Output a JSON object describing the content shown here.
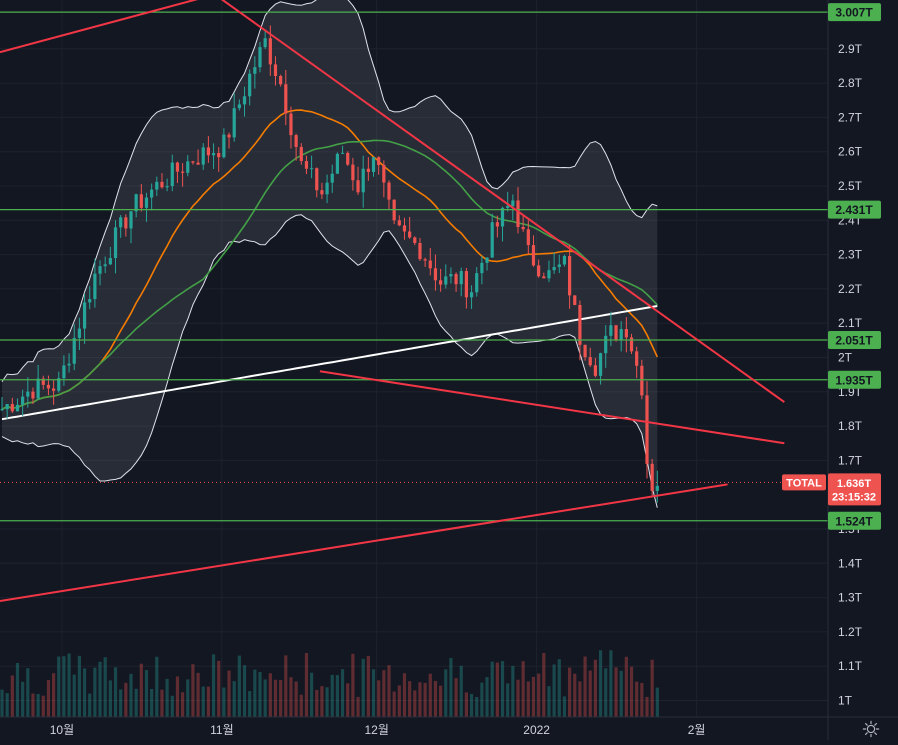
{
  "colors": {
    "background": "#131722",
    "grid": "#1e222d",
    "up": "#26a69a",
    "down": "#ef5350",
    "level_line": "#4caf50",
    "level_tag": "#4caf50",
    "trend_line": "#f23645",
    "bb_line": "#e0e3eb",
    "bb_fill": "rgba(120,123,134,0.22)",
    "ma_orange": "#f57c00",
    "ma_green": "#43a047",
    "ma_white": "#ffffff",
    "axis_text": "#d1d4dc"
  },
  "chart_data": {
    "type": "candlestick",
    "symbol": "TOTAL",
    "y_axis": {
      "scale": "linear",
      "unit": "T",
      "range": [
        0.93,
        3.05
      ],
      "ticks": [
        {
          "value": 2.9,
          "label": "2.9T"
        },
        {
          "value": 2.8,
          "label": "2.8T"
        },
        {
          "value": 2.7,
          "label": "2.7T"
        },
        {
          "value": 2.6,
          "label": "2.6T"
        },
        {
          "value": 2.5,
          "label": "2.5T"
        },
        {
          "value": 2.4,
          "label": "2.4T"
        },
        {
          "value": 2.3,
          "label": "2.3T"
        },
        {
          "value": 2.2,
          "label": "2.2T"
        },
        {
          "value": 2.1,
          "label": "2.1T"
        },
        {
          "value": 2.0,
          "label": "2T"
        },
        {
          "value": 1.9,
          "label": "1.9T"
        },
        {
          "value": 1.8,
          "label": "1.8T"
        },
        {
          "value": 1.7,
          "label": "1.7T"
        },
        {
          "value": 1.5,
          "label": "1.5T"
        },
        {
          "value": 1.4,
          "label": "1.4T"
        },
        {
          "value": 1.3,
          "label": "1.3T"
        },
        {
          "value": 1.2,
          "label": "1.2T"
        },
        {
          "value": 1.1,
          "label": "1.1T"
        },
        {
          "value": 1.0,
          "label": "1T"
        }
      ]
    },
    "x_axis": {
      "range": [
        "2021-09-19",
        "2022-02-18"
      ],
      "ticks": [
        {
          "date": "2021-10-01",
          "label": "10월"
        },
        {
          "date": "2021-11-01",
          "label": "11월"
        },
        {
          "date": "2021-12-01",
          "label": "12월"
        },
        {
          "date": "2022-01-01",
          "label": "2022"
        },
        {
          "date": "2022-02-01",
          "label": "2월"
        }
      ]
    },
    "horizontal_levels": [
      {
        "value": 3.007,
        "label": "3.007T"
      },
      {
        "value": 2.431,
        "label": "2.431T"
      },
      {
        "value": 2.051,
        "label": "2.051T"
      },
      {
        "value": 1.935,
        "label": "1.935T"
      },
      {
        "value": 1.524,
        "label": "1.524T"
      }
    ],
    "last_price": {
      "value": 1.636,
      "label": "1.636T",
      "countdown": "23:15:32",
      "symbol_label": "TOTAL"
    },
    "trend_lines": [
      {
        "from": {
          "date": "2021-09-19",
          "value": 2.89
        },
        "to": {
          "date": "2021-12-17",
          "value": 3.25
        }
      },
      {
        "from": {
          "date": "2021-10-24",
          "value": 3.13
        },
        "to": {
          "date": "2022-02-18",
          "value": 1.87
        }
      },
      {
        "from": {
          "date": "2021-11-20",
          "value": 1.96
        },
        "to": {
          "date": "2022-02-18",
          "value": 1.75
        }
      },
      {
        "from": {
          "date": "2021-09-19",
          "value": 1.29
        },
        "to": {
          "date": "2022-02-07",
          "value": 1.63
        }
      }
    ],
    "ohlc_anchors": [
      {
        "date": "2021-09-19",
        "value": 1.85
      },
      {
        "date": "2021-09-25",
        "value": 1.91
      },
      {
        "date": "2021-09-30",
        "value": 1.92
      },
      {
        "date": "2021-10-07",
        "value": 2.24
      },
      {
        "date": "2021-10-14",
        "value": 2.43
      },
      {
        "date": "2021-10-19",
        "value": 2.5
      },
      {
        "date": "2021-10-26",
        "value": 2.58
      },
      {
        "date": "2021-11-01",
        "value": 2.62
      },
      {
        "date": "2021-11-06",
        "value": 2.82
      },
      {
        "date": "2021-11-09",
        "value": 2.92
      },
      {
        "date": "2021-11-12",
        "value": 2.8
      },
      {
        "date": "2021-11-16",
        "value": 2.56
      },
      {
        "date": "2021-11-20",
        "value": 2.48
      },
      {
        "date": "2021-11-24",
        "value": 2.6
      },
      {
        "date": "2021-11-27",
        "value": 2.5
      },
      {
        "date": "2021-11-30",
        "value": 2.6
      },
      {
        "date": "2021-12-04",
        "value": 2.37
      },
      {
        "date": "2021-12-09",
        "value": 2.32
      },
      {
        "date": "2021-12-13",
        "value": 2.22
      },
      {
        "date": "2021-12-16",
        "value": 2.23
      },
      {
        "date": "2021-12-19",
        "value": 2.2
      },
      {
        "date": "2021-12-23",
        "value": 2.36
      },
      {
        "date": "2021-12-27",
        "value": 2.46
      },
      {
        "date": "2021-12-30",
        "value": 2.3
      },
      {
        "date": "2022-01-03",
        "value": 2.24
      },
      {
        "date": "2022-01-06",
        "value": 2.27
      },
      {
        "date": "2022-01-09",
        "value": 2.06
      },
      {
        "date": "2022-01-12",
        "value": 1.98
      },
      {
        "date": "2022-01-15",
        "value": 2.07
      },
      {
        "date": "2022-01-18",
        "value": 2.09
      },
      {
        "date": "2022-01-21",
        "value": 1.92
      },
      {
        "date": "2022-01-22",
        "value": 1.7
      },
      {
        "date": "2022-01-23",
        "value": 1.63
      },
      {
        "date": "2022-01-24",
        "value": 1.64
      }
    ]
  }
}
